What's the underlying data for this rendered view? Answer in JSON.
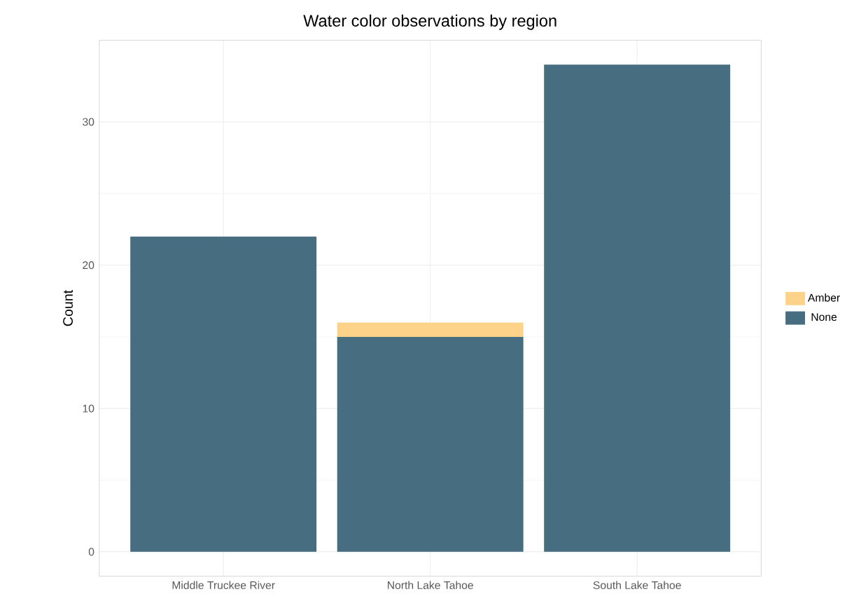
{
  "chart_data": {
    "type": "bar",
    "title": "Water color observations by region",
    "ylabel": "Count",
    "categories": [
      "Middle Truckee River",
      "North Lake Tahoe",
      "South Lake Tahoe"
    ],
    "stacked": true,
    "series": [
      {
        "name": "None",
        "color": "#476e80",
        "values": [
          22,
          15,
          34
        ]
      },
      {
        "name": "Amber",
        "color": "#fdd38a",
        "values": [
          null,
          1,
          null
        ]
      }
    ],
    "ylim": [
      -1.7,
      35.7
    ],
    "yticks": [
      0,
      10,
      20,
      30
    ],
    "grid": true,
    "legend": "right"
  }
}
